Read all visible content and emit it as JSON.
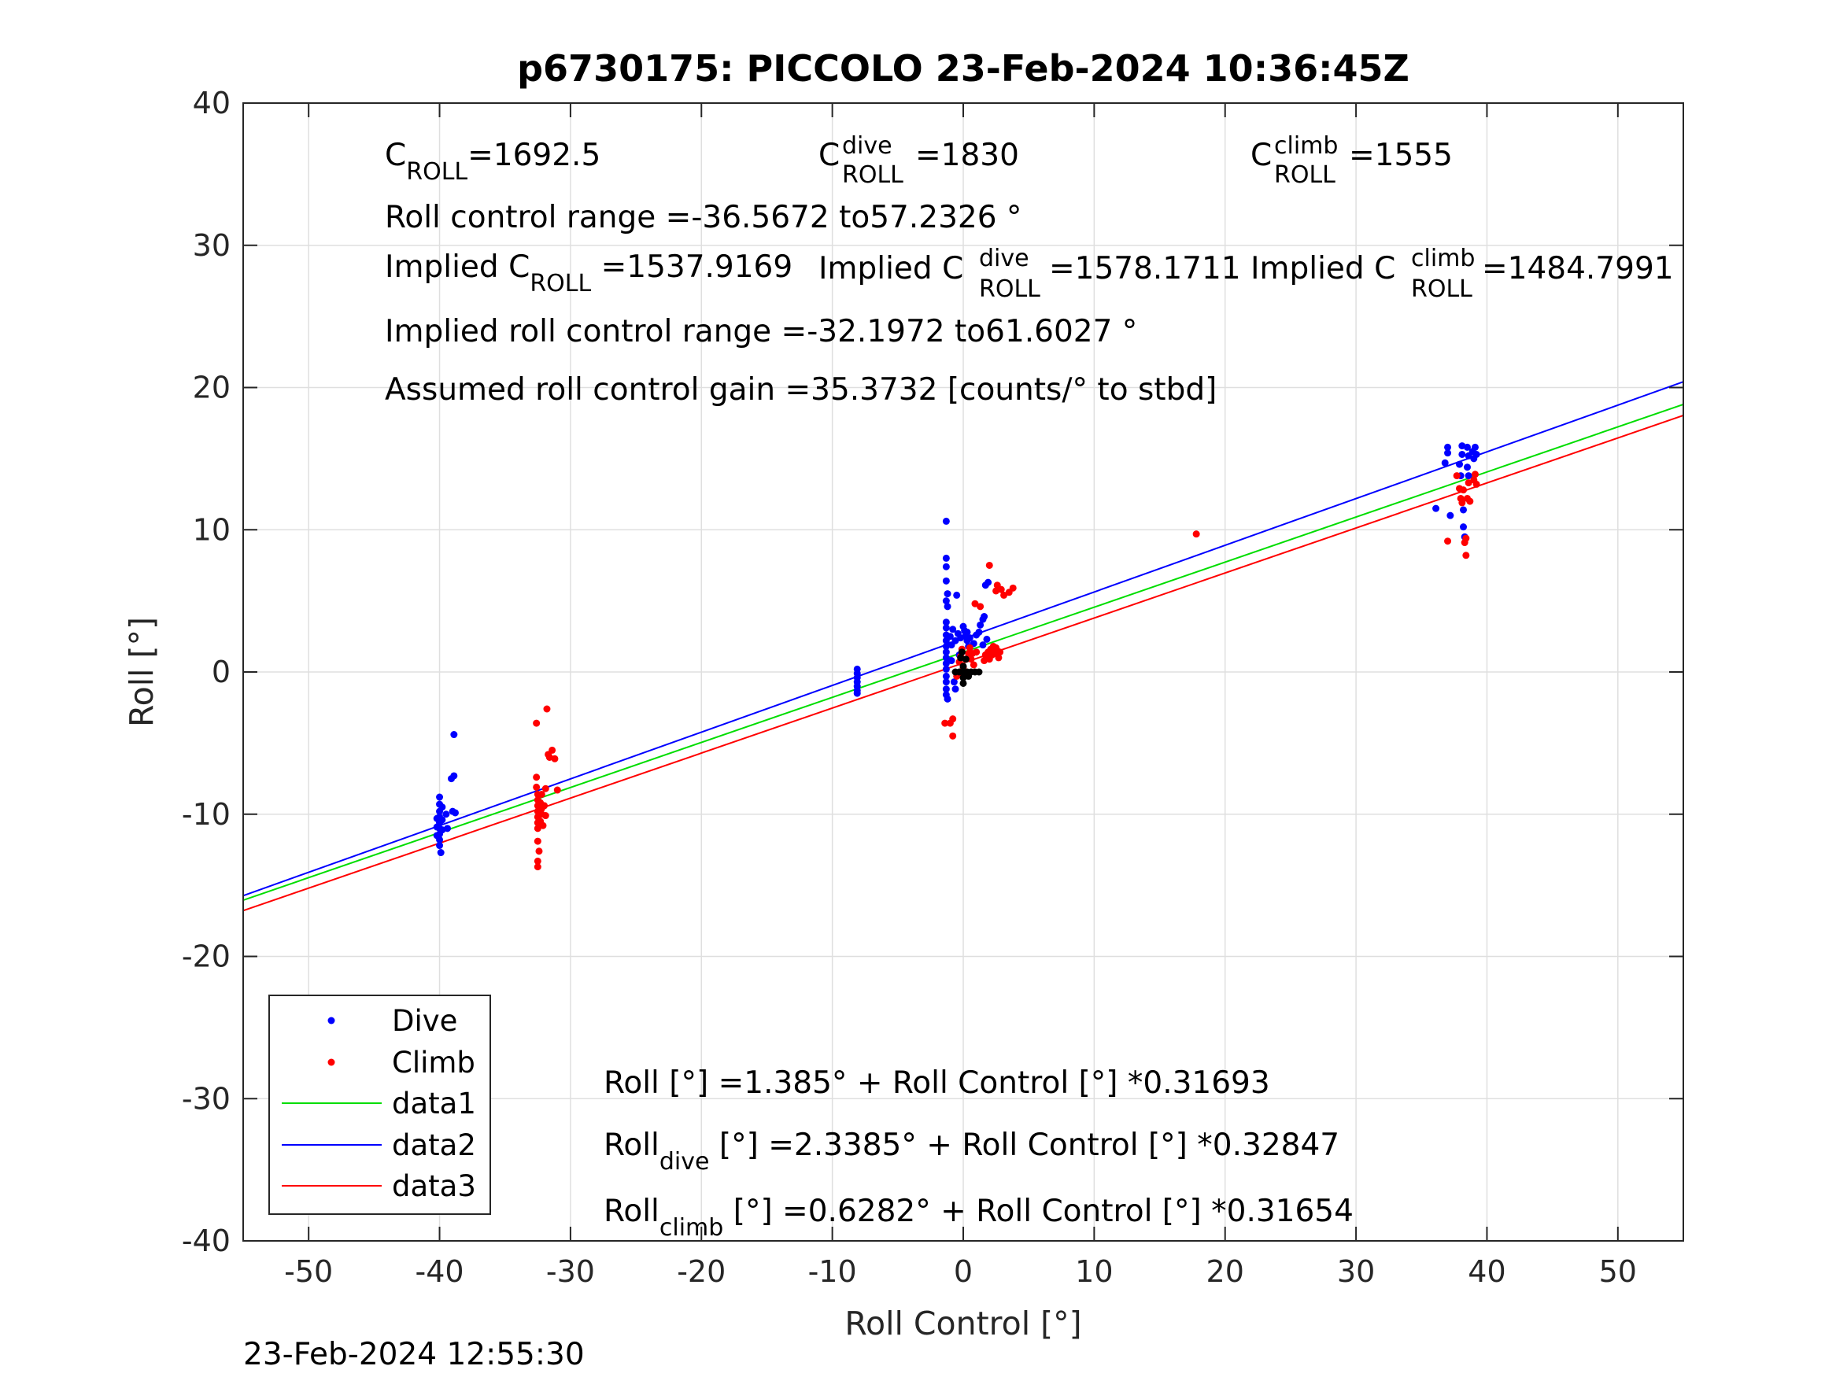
{
  "chart_data": {
    "type": "scatter",
    "title": "p6730175: PICCOLO 23-Feb-2024 10:36:45Z",
    "xlabel": "Roll Control [°]",
    "ylabel": "Roll [°]",
    "xlim": [
      -55,
      55
    ],
    "ylim": [
      -40,
      40
    ],
    "x_ticks": [
      -50,
      -40,
      -30,
      -20,
      -10,
      0,
      10,
      20,
      30,
      40,
      50
    ],
    "y_ticks": [
      -40,
      -30,
      -20,
      -10,
      0,
      10,
      20,
      30,
      40
    ],
    "grid": true,
    "timestamp": "23-Feb-2024 12:55:30",
    "colors": {
      "dive": "#0000ff",
      "climb": "#ff0000",
      "data1": "#00dd00",
      "data2": "#0000ff",
      "data3": "#ff0000",
      "marker": "#000000"
    },
    "annotations": {
      "c_roll": {
        "label": "C",
        "sub": "ROLL",
        "value": "=1692.5"
      },
      "c_roll_dive": {
        "label": "C",
        "sup": "dive",
        "sub": "ROLL",
        "value": " =1830"
      },
      "c_roll_climb": {
        "label": "C",
        "sup": "climb",
        "sub": "ROLL",
        "value": " =1555"
      },
      "roll_range": "Roll control range =-36.5672 to57.2326 °",
      "implied_c_roll": {
        "label": "Implied C",
        "sub": "ROLL",
        "value": " =1537.9169"
      },
      "implied_c_roll_dive": {
        "label": "Implied C",
        "sup": "dive",
        "sub": "ROLL",
        "value": " =1578.1711"
      },
      "implied_c_roll_climb": {
        "label": "Implied C",
        "sup": "climb",
        "sub": "ROLL",
        "value": " =1484.7991"
      },
      "implied_range": "Implied roll control range =-32.1972 to61.6027 °",
      "gain": "Assumed roll control gain =35.3732 [counts/° to stbd]",
      "eq_all": "Roll [°] =1.385° + Roll Control [°] *0.31693",
      "eq_dive": {
        "label": "Roll",
        "sub": "dive",
        "value": " [°] =2.3385° + Roll Control [°] *0.32847"
      },
      "eq_climb": {
        "label": "Roll",
        "sub": "climb",
        "value": " [°] =0.6282° + Roll Control [°] *0.31654"
      }
    },
    "series": [
      {
        "name": "Dive",
        "kind": "points",
        "points": [
          [
            -40.0,
            -8.8
          ],
          [
            -40.0,
            -9.3
          ],
          [
            -40.0,
            -9.8
          ],
          [
            -40.0,
            -10.2
          ],
          [
            -40.0,
            -10.6
          ],
          [
            -40.0,
            -11.0
          ],
          [
            -40.0,
            -11.4
          ],
          [
            -40.0,
            -11.8
          ],
          [
            -40.0,
            -12.2
          ],
          [
            -39.9,
            -12.7
          ],
          [
            -39.8,
            -9.5
          ],
          [
            -39.8,
            -10.4
          ],
          [
            -39.8,
            -11.1
          ],
          [
            -40.2,
            -10.3
          ],
          [
            -40.2,
            -10.9
          ],
          [
            -40.2,
            -11.5
          ],
          [
            -39.5,
            -10.0
          ],
          [
            -39.4,
            -11.0
          ],
          [
            -38.9,
            -4.4
          ],
          [
            -38.9,
            -7.3
          ],
          [
            -39.1,
            -7.5
          ],
          [
            -38.8,
            -9.9
          ],
          [
            -39.0,
            -9.8
          ],
          [
            -8.1,
            0.2
          ],
          [
            -8.1,
            -0.1
          ],
          [
            -8.1,
            -0.4
          ],
          [
            -8.1,
            -0.7
          ],
          [
            -8.1,
            -1.0
          ],
          [
            -8.1,
            -1.3
          ],
          [
            -8.1,
            -1.5
          ],
          [
            -1.3,
            10.6
          ],
          [
            -1.3,
            8.0
          ],
          [
            -1.3,
            7.4
          ],
          [
            -1.3,
            6.4
          ],
          [
            -1.2,
            5.5
          ],
          [
            -1.3,
            5.0
          ],
          [
            -1.2,
            4.6
          ],
          [
            -1.3,
            3.5
          ],
          [
            -1.3,
            3.1
          ],
          [
            -1.3,
            2.6
          ],
          [
            -1.3,
            2.2
          ],
          [
            -1.3,
            1.8
          ],
          [
            -1.3,
            1.4
          ],
          [
            -1.3,
            1.0
          ],
          [
            -1.3,
            0.6
          ],
          [
            -1.3,
            0.2
          ],
          [
            -1.3,
            -0.3
          ],
          [
            -1.3,
            -0.7
          ],
          [
            -1.3,
            -1.2
          ],
          [
            -1.3,
            -1.6
          ],
          [
            -1.2,
            -1.9
          ],
          [
            -1.0,
            2.5
          ],
          [
            -0.9,
            0.8
          ],
          [
            -0.7,
            -0.7
          ],
          [
            -0.6,
            -1.2
          ],
          [
            -0.9,
            1.9
          ],
          [
            -0.8,
            3.0
          ],
          [
            -0.5,
            5.4
          ],
          [
            -0.6,
            2.2
          ],
          [
            -0.4,
            2.7
          ],
          [
            -0.3,
            1.2
          ],
          [
            -0.2,
            2.4
          ],
          [
            0.0,
            3.2
          ],
          [
            0.1,
            2.9
          ],
          [
            0.2,
            2.6
          ],
          [
            0.3,
            2.2
          ],
          [
            0.4,
            1.8
          ],
          [
            0.3,
            2.8
          ],
          [
            0.5,
            2.4
          ],
          [
            0.8,
            2.0
          ],
          [
            1.0,
            2.6
          ],
          [
            1.3,
            3.3
          ],
          [
            1.5,
            3.7
          ],
          [
            1.6,
            3.9
          ],
          [
            1.7,
            6.1
          ],
          [
            1.9,
            6.3
          ],
          [
            1.2,
            2.8
          ],
          [
            1.8,
            2.3
          ],
          [
            1.5,
            1.9
          ],
          [
            36.1,
            11.5
          ],
          [
            36.8,
            14.7
          ],
          [
            37.0,
            15.4
          ],
          [
            37.0,
            15.8
          ],
          [
            37.2,
            11.0
          ],
          [
            37.9,
            14.6
          ],
          [
            38.0,
            13.8
          ],
          [
            38.1,
            15.3
          ],
          [
            38.1,
            15.9
          ],
          [
            38.2,
            11.4
          ],
          [
            38.2,
            10.2
          ],
          [
            38.3,
            9.5
          ],
          [
            38.5,
            15.8
          ],
          [
            38.6,
            15.2
          ],
          [
            38.6,
            13.8
          ],
          [
            38.9,
            15.5
          ],
          [
            39.0,
            15.0
          ],
          [
            39.1,
            15.8
          ],
          [
            39.2,
            15.3
          ],
          [
            38.5,
            14.4
          ]
        ]
      },
      {
        "name": "Climb",
        "kind": "points",
        "points": [
          [
            -32.6,
            -3.6
          ],
          [
            -32.6,
            -7.4
          ],
          [
            -32.6,
            -8.1
          ],
          [
            -32.5,
            -8.6
          ],
          [
            -32.5,
            -9.0
          ],
          [
            -32.5,
            -9.4
          ],
          [
            -32.5,
            -9.8
          ],
          [
            -32.5,
            -10.2
          ],
          [
            -32.5,
            -10.6
          ],
          [
            -32.5,
            -11.0
          ],
          [
            -32.5,
            -11.9
          ],
          [
            -32.5,
            -13.3
          ],
          [
            -32.5,
            -13.7
          ],
          [
            -32.3,
            -9.2
          ],
          [
            -32.3,
            -10.5
          ],
          [
            -32.2,
            -9.6
          ],
          [
            -32.2,
            -10.0
          ],
          [
            -32.1,
            -10.8
          ],
          [
            -32.0,
            -9.4
          ],
          [
            -31.9,
            -10.1
          ],
          [
            -32.2,
            -8.6
          ],
          [
            -32.4,
            -12.6
          ],
          [
            -31.7,
            -5.8
          ],
          [
            -31.4,
            -5.5
          ],
          [
            -31.2,
            -6.1
          ],
          [
            -31.6,
            -6.0
          ],
          [
            -31.8,
            -2.6
          ],
          [
            -31.9,
            -8.2
          ],
          [
            -31.0,
            -8.3
          ],
          [
            -1.4,
            -3.6
          ],
          [
            -1.0,
            -3.6
          ],
          [
            -0.8,
            -3.3
          ],
          [
            -0.8,
            -4.5
          ],
          [
            -0.5,
            -0.3
          ],
          [
            -0.3,
            0.7
          ],
          [
            -0.2,
            1.1
          ],
          [
            -0.1,
            1.6
          ],
          [
            0.0,
            0.3
          ],
          [
            0.0,
            -0.2
          ],
          [
            0.2,
            0.9
          ],
          [
            0.4,
            1.3
          ],
          [
            0.5,
            1.7
          ],
          [
            0.6,
            0.9
          ],
          [
            0.7,
            1.3
          ],
          [
            0.8,
            0.5
          ],
          [
            1.0,
            1.4
          ],
          [
            0.9,
            4.8
          ],
          [
            1.6,
            0.8
          ],
          [
            1.7,
            1.2
          ],
          [
            1.8,
            1.0
          ],
          [
            1.9,
            1.4
          ],
          [
            2.0,
            0.9
          ],
          [
            2.1,
            1.6
          ],
          [
            2.2,
            1.2
          ],
          [
            2.3,
            1.8
          ],
          [
            2.4,
            1.3
          ],
          [
            2.5,
            1.7
          ],
          [
            2.6,
            1.5
          ],
          [
            2.7,
            1.0
          ],
          [
            2.8,
            1.4
          ],
          [
            1.3,
            4.6
          ],
          [
            2.0,
            7.5
          ],
          [
            2.5,
            5.7
          ],
          [
            2.6,
            6.1
          ],
          [
            2.9,
            5.8
          ],
          [
            3.1,
            5.4
          ],
          [
            3.5,
            5.6
          ],
          [
            3.8,
            5.9
          ],
          [
            17.8,
            9.7
          ],
          [
            37.0,
            9.2
          ],
          [
            37.7,
            13.8
          ],
          [
            37.9,
            12.9
          ],
          [
            38.0,
            12.2
          ],
          [
            38.1,
            11.9
          ],
          [
            38.2,
            12.8
          ],
          [
            38.3,
            9.1
          ],
          [
            38.4,
            8.2
          ],
          [
            38.4,
            9.4
          ],
          [
            38.5,
            12.2
          ],
          [
            38.6,
            13.3
          ],
          [
            38.7,
            12.0
          ],
          [
            39.0,
            13.5
          ],
          [
            39.1,
            13.9
          ],
          [
            39.2,
            13.2
          ]
        ]
      },
      {
        "name": "marker",
        "kind": "points",
        "points": [
          [
            -0.6,
            0.0
          ],
          [
            -0.3,
            0.0
          ],
          [
            0.0,
            0.0
          ],
          [
            0.3,
            0.0
          ],
          [
            0.6,
            0.0
          ],
          [
            0.9,
            0.0
          ],
          [
            1.2,
            0.0
          ],
          [
            0.0,
            -0.4
          ],
          [
            0.0,
            -0.8
          ],
          [
            0.0,
            0.4
          ],
          [
            0.2,
            0.9
          ],
          [
            -0.2,
            1.0
          ],
          [
            0.4,
            -0.3
          ],
          [
            -0.1,
            1.4
          ]
        ]
      },
      {
        "name": "data1",
        "kind": "line",
        "intercept": 1.385,
        "slope": 0.31693
      },
      {
        "name": "data2",
        "kind": "line",
        "intercept": 2.3385,
        "slope": 0.32847
      },
      {
        "name": "data3",
        "kind": "line",
        "intercept": 0.6282,
        "slope": 0.31654
      }
    ],
    "legend": {
      "position": "bottom-left",
      "entries": [
        {
          "label": "Dive",
          "series": "Dive",
          "kind": "marker"
        },
        {
          "label": "Climb",
          "series": "Climb",
          "kind": "marker"
        },
        {
          "label": "data1",
          "series": "data1",
          "kind": "line"
        },
        {
          "label": "data2",
          "series": "data2",
          "kind": "line"
        },
        {
          "label": "data3",
          "series": "data3",
          "kind": "line"
        }
      ]
    }
  }
}
